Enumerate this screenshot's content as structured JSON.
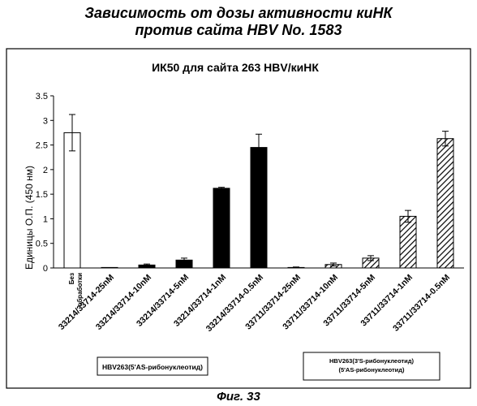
{
  "figure": {
    "title_line1": "Зависимость от дозы активности киНК",
    "title_line2": "против сайта HBV No. 1583",
    "caption": "Фиг. 33"
  },
  "chart_data": {
    "type": "bar",
    "title": "ИК50 для сайта 263 HBV/киНК",
    "ylabel": "Единицы О.П. (450 нм)",
    "xlabel": "",
    "ylim": [
      0,
      3.5
    ],
    "yticks": [
      "0",
      "0.5",
      "1",
      "1.5",
      "2",
      "2.5",
      "3",
      "3.5"
    ],
    "grid": false,
    "categories": [
      "Без обработки",
      "33214/33714-25nM",
      "33214/33714-10nM",
      "33214/33714-5nM",
      "33214/33714-1nM",
      "33214/33714-0.5nM",
      "33711/33714-25nM",
      "33711/33714-10nM",
      "33711/33714-5nM",
      "33711/33714-1nM",
      "33711/33714-0.5nM"
    ],
    "values": [
      2.75,
      0.01,
      0.06,
      0.16,
      1.62,
      2.45,
      0.01,
      0.07,
      0.2,
      1.05,
      2.63
    ],
    "errors": [
      0.37,
      0.0,
      0.02,
      0.04,
      0.02,
      0.27,
      0.01,
      0.03,
      0.05,
      0.12,
      0.15
    ],
    "fills": [
      "white",
      "black",
      "black",
      "black",
      "black",
      "black",
      "hatch",
      "hatch",
      "hatch",
      "hatch",
      "hatch"
    ],
    "groups": [
      {
        "label_line1": "HBV263(5'AS-рибонуклеотид)",
        "label_line2": ""
      },
      {
        "label_line1": "HBV263(3'S-рибонуклеотид)",
        "label_line2": "(5'AS-рибонуклеотид)"
      }
    ]
  }
}
